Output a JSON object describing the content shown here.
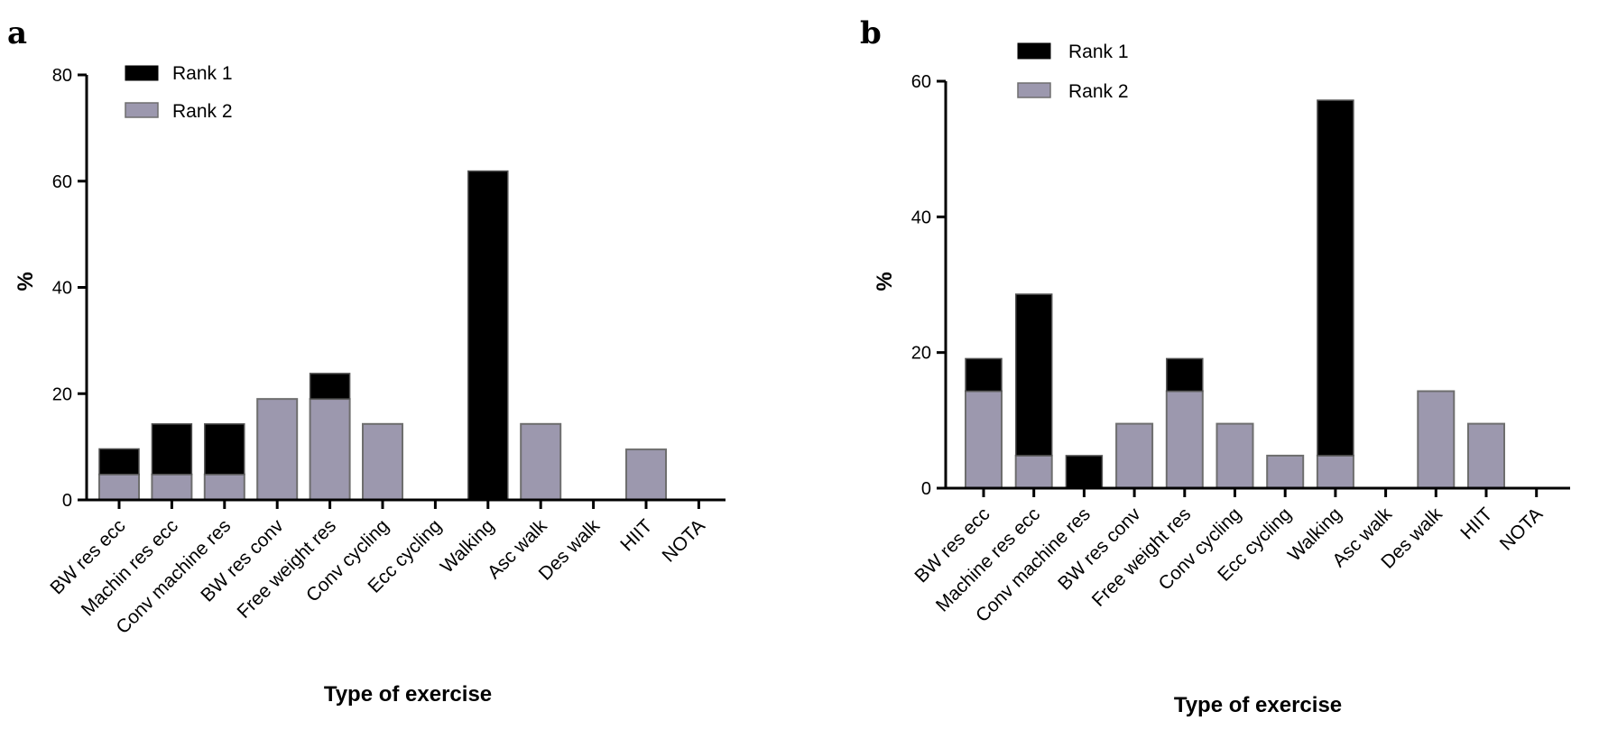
{
  "colors": {
    "rank1": "#000000",
    "rank2": "#9c98ae",
    "bar_outline": "#6e6e6e"
  },
  "chart_data": [
    {
      "type": "bar",
      "stacked": true,
      "panel": "a",
      "categories": [
        "BW res ecc",
        "Machin res ecc",
        "Conv machine res",
        "BW res conv",
        "Free weight res",
        "Conv cycling",
        "Ecc cycling",
        "Walking",
        "Asc walk",
        "Des walk",
        "HIIT",
        "NOTA"
      ],
      "series": [
        {
          "name": "Rank 1",
          "values": [
            4.8,
            9.5,
            9.5,
            0,
            4.8,
            0,
            0,
            61.9,
            0,
            0,
            0,
            0
          ]
        },
        {
          "name": "Rank 2",
          "values": [
            4.8,
            4.8,
            4.8,
            19.0,
            19.0,
            14.3,
            0,
            0,
            14.3,
            0,
            9.5,
            0
          ]
        }
      ],
      "stack_order": [
        "Rank 2",
        "Rank 1"
      ],
      "xlabel": "Type of exercise",
      "ylabel": "%",
      "ylim": [
        0,
        80
      ],
      "yticks": [
        "0",
        "20",
        "40",
        "60",
        "80"
      ],
      "legend_position": "top-left",
      "grid": false
    },
    {
      "type": "bar",
      "stacked": true,
      "panel": "b",
      "categories": [
        "BW res ecc",
        "Machine res ecc",
        "Conv machine res",
        "BW res conv",
        "Free weight res",
        "Conv cycling",
        "Ecc cycling",
        "Walking",
        "Asc walk",
        "Des walk",
        "HIIT",
        "NOTA"
      ],
      "series": [
        {
          "name": "Rank 1",
          "values": [
            4.8,
            23.8,
            4.8,
            0,
            4.8,
            0,
            0,
            52.4,
            0,
            0,
            0,
            0
          ]
        },
        {
          "name": "Rank 2",
          "values": [
            14.3,
            4.8,
            0,
            9.5,
            14.3,
            9.5,
            4.8,
            4.8,
            0,
            14.3,
            9.5,
            0
          ]
        }
      ],
      "stack_order": [
        "Rank 2",
        "Rank 1"
      ],
      "xlabel": "Type of exercise",
      "ylabel": "%",
      "ylim": [
        0,
        60
      ],
      "yticks": [
        "0",
        "20",
        "40",
        "60"
      ],
      "legend_position": "top-left",
      "grid": false
    }
  ]
}
